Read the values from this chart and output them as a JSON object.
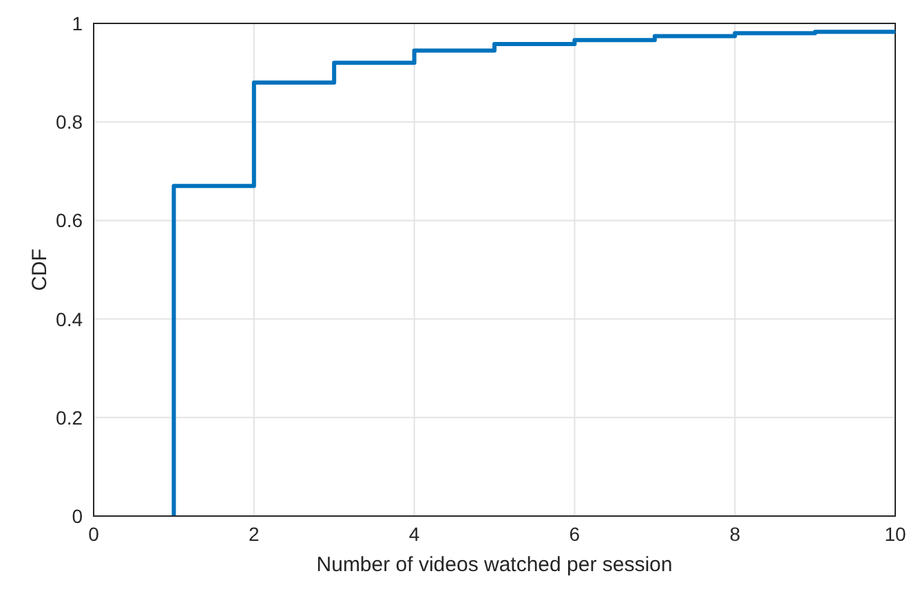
{
  "chart_data": {
    "type": "step",
    "xlabel": "Number of videos watched per session",
    "ylabel": "CDF",
    "x": [
      1,
      1,
      2,
      3,
      4,
      5,
      6,
      7,
      8,
      9,
      10
    ],
    "series": [
      {
        "color": "#0072bd",
        "values": [
          0,
          0.67,
          0.88,
          0.92,
          0.945,
          0.958,
          0.966,
          0.974,
          0.98,
          0.983,
          0.983
        ]
      }
    ],
    "xlim": [
      0,
      10
    ],
    "xticks": [
      0,
      2,
      4,
      6,
      8,
      10
    ],
    "ylim": [
      0,
      1
    ],
    "yticks": [
      0,
      0.2,
      0.4,
      0.6,
      0.8,
      1
    ],
    "grid": true,
    "legend": false,
    "marker": "none",
    "line_style": "solid"
  }
}
